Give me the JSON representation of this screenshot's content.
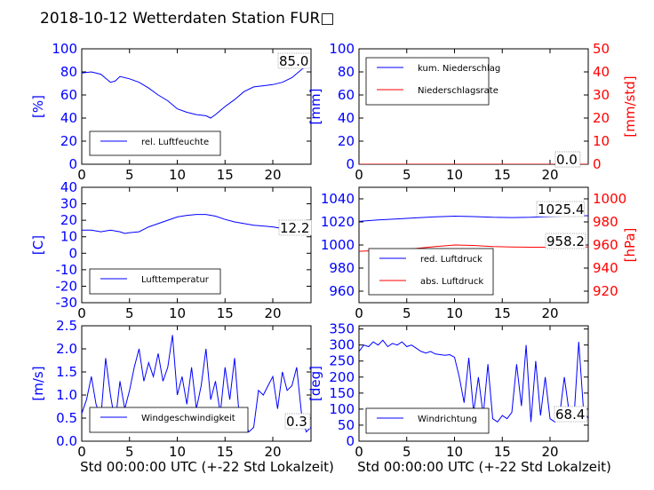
{
  "title": "2018-10-12 Wetterdaten Station FUR□",
  "colors": {
    "primary": "#0000ff",
    "secondary": "#ff0000",
    "frame": "#000000",
    "background": "#ffffff"
  },
  "chart_data": [
    {
      "type": "line",
      "id": "humidity",
      "ylabel": "[%]",
      "xlim": [
        0,
        24
      ],
      "ylim": [
        0,
        100
      ],
      "xticks": [
        0,
        5,
        10,
        15,
        20
      ],
      "yticks": [
        0,
        20,
        40,
        60,
        80,
        100
      ],
      "series": [
        {
          "name": "rel. Luftfeuchte",
          "color": "#0000ff",
          "x": [
            0,
            1,
            2,
            3,
            3.5,
            4,
            5,
            6,
            7,
            8,
            9,
            10,
            11,
            12,
            13,
            13.5,
            14,
            15,
            16,
            17,
            18,
            19,
            20,
            21,
            22,
            23,
            23.5,
            24
          ],
          "y": [
            79,
            80,
            78,
            71,
            72,
            76,
            74,
            71,
            66,
            60,
            55,
            48,
            45,
            43,
            42,
            40,
            43,
            50,
            56,
            63,
            67,
            68,
            69,
            71,
            75,
            82,
            85,
            84
          ]
        }
      ],
      "annotation": "85.0",
      "legend_loc": "lower-left"
    },
    {
      "type": "line",
      "id": "precipitation",
      "ylabel": "[mm]",
      "ylabel2": "[mm/std]",
      "xlim": [
        0,
        24
      ],
      "ylim": [
        0,
        100
      ],
      "ylim2": [
        0,
        50
      ],
      "xticks": [
        0,
        5,
        10,
        15,
        20
      ],
      "yticks": [
        0,
        20,
        40,
        60,
        80,
        100
      ],
      "yticks2": [
        0,
        10,
        20,
        30,
        40,
        50
      ],
      "series": [
        {
          "name": "kum. Niederschlag",
          "color": "#0000ff",
          "x": [
            0,
            24
          ],
          "y": [
            0,
            0
          ]
        },
        {
          "name": "Niederschlagsrate",
          "color": "#ff0000",
          "x": [
            0,
            24
          ],
          "y": [
            0,
            0
          ],
          "axis": "right"
        }
      ],
      "annotation": "0.0",
      "annotation2": "0.0",
      "legend_loc": "upper-left"
    },
    {
      "type": "line",
      "id": "temperature",
      "ylabel": "[C]",
      "xlim": [
        0,
        24
      ],
      "ylim": [
        -30,
        40
      ],
      "xticks": [
        0,
        5,
        10,
        15,
        20
      ],
      "yticks": [
        -30,
        -20,
        -10,
        0,
        10,
        20,
        30,
        40
      ],
      "series": [
        {
          "name": "Lufttemperatur",
          "color": "#0000ff",
          "x": [
            0,
            1,
            2,
            3,
            4,
            4.5,
            5,
            6,
            7,
            8,
            9,
            10,
            11,
            12,
            13,
            14,
            15,
            16,
            17,
            18,
            19,
            20,
            21,
            22,
            23,
            24
          ],
          "y": [
            14,
            14,
            13,
            14,
            13,
            12,
            12.5,
            13,
            16,
            18,
            20,
            22,
            23,
            23.5,
            23.5,
            22.5,
            20.5,
            19,
            18,
            17,
            16.5,
            16,
            15,
            13.5,
            12.5,
            12.2
          ]
        }
      ],
      "annotation": "12.2",
      "legend_loc": "lower-left"
    },
    {
      "type": "line",
      "id": "pressure",
      "ylabel2": "[hPa]",
      "xlim": [
        0,
        24
      ],
      "ylim": [
        950,
        1050
      ],
      "ylim2": [
        910,
        1010
      ],
      "xticks": [
        0,
        5,
        10,
        15,
        20
      ],
      "yticks": [
        960,
        980,
        1000,
        1020,
        1040
      ],
      "yticks2": [
        920,
        940,
        960,
        980,
        1000
      ],
      "series": [
        {
          "name": "red. Luftdruck",
          "color": "#0000ff",
          "x": [
            0,
            2,
            4,
            6,
            8,
            10,
            12,
            14,
            16,
            18,
            20,
            22,
            24
          ],
          "y": [
            1020.5,
            1021.8,
            1022.6,
            1023.5,
            1024.4,
            1025,
            1024.6,
            1024,
            1023.8,
            1024,
            1024.6,
            1025.2,
            1025.4
          ]
        },
        {
          "name": "abs. Luftdruck",
          "color": "#ff0000",
          "axis": "right",
          "x": [
            0,
            2,
            4,
            6,
            8,
            10,
            12,
            14,
            16,
            18,
            20,
            22,
            24
          ],
          "y": [
            954.5,
            955.3,
            956,
            957,
            958.6,
            960,
            959.6,
            958.6,
            958.2,
            958.1,
            958.1,
            958.2,
            958.2
          ]
        }
      ],
      "annotation": "1025.4",
      "annotation2": "958.2",
      "legend_loc": "lower-left"
    },
    {
      "type": "line",
      "id": "wind_speed",
      "ylabel": "[m/s]",
      "xlabel": "Std 00:00:00 UTC (+-22 Std Lokalzeit)",
      "xlim": [
        0,
        24
      ],
      "ylim": [
        0,
        2.5
      ],
      "xticks": [
        0,
        5,
        10,
        15,
        20
      ],
      "yticks": [
        0,
        0.5,
        1.0,
        1.5,
        2.0,
        2.5
      ],
      "series": [
        {
          "name": "Windgeschwindigkeit",
          "color": "#0000ff",
          "x": [
            0,
            0.5,
            1,
            1.5,
            2,
            2.5,
            3,
            3.5,
            4,
            4.5,
            5,
            5.5,
            6,
            6.5,
            7,
            7.5,
            8,
            8.5,
            9,
            9.5,
            10,
            10.5,
            11,
            11.5,
            12,
            12.5,
            13,
            13.5,
            14,
            14.5,
            15,
            15.5,
            16,
            16.5,
            17,
            17.5,
            18,
            18.5,
            19,
            19.5,
            20,
            20.5,
            21,
            21.5,
            22,
            22.5,
            23,
            23.5,
            24
          ],
          "y": [
            0.6,
            0.9,
            1.4,
            0.8,
            0.5,
            1.8,
            1.0,
            0.4,
            1.3,
            0.7,
            1.1,
            1.6,
            2.0,
            1.3,
            1.7,
            1.4,
            1.9,
            1.3,
            1.6,
            2.3,
            1.0,
            1.4,
            0.8,
            1.6,
            0.7,
            1.2,
            2.0,
            0.9,
            1.3,
            0.6,
            1.6,
            0.9,
            1.8,
            0.5,
            0.4,
            0.2,
            0.3,
            1.1,
            1.0,
            1.2,
            1.4,
            0.7,
            1.5,
            1.1,
            1.2,
            1.6,
            0.6,
            0.2,
            0.3
          ]
        }
      ],
      "annotation": "0.3",
      "legend_loc": "lower-left"
    },
    {
      "type": "line",
      "id": "wind_direction",
      "ylabel": "[deg]",
      "xlabel": "Std 00:00:00 UTC (+-22 Std Lokalzeit)",
      "xlim": [
        0,
        24
      ],
      "ylim": [
        0,
        360
      ],
      "xticks": [
        0,
        5,
        10,
        15,
        20
      ],
      "yticks": [
        0,
        50,
        100,
        150,
        200,
        250,
        300,
        350
      ],
      "series": [
        {
          "name": "Windrichtung",
          "color": "#0000ff",
          "x": [
            0,
            0.5,
            1,
            1.5,
            2,
            2.5,
            3,
            3.5,
            4,
            4.5,
            5,
            5.5,
            6,
            6.5,
            7,
            7.5,
            8,
            8.5,
            9,
            9.5,
            10,
            10.5,
            11,
            11.5,
            12,
            12.5,
            13,
            13.5,
            14,
            14.5,
            15,
            15.5,
            16,
            16.5,
            17,
            17.5,
            18,
            18.5,
            19,
            19.5,
            20,
            20.5,
            21,
            21.5,
            22,
            22.5,
            23,
            23.5,
            24
          ],
          "y": [
            280,
            300,
            295,
            310,
            300,
            315,
            295,
            305,
            300,
            310,
            295,
            300,
            290,
            280,
            275,
            280,
            272,
            270,
            268,
            270,
            262,
            200,
            120,
            260,
            90,
            200,
            80,
            240,
            70,
            60,
            80,
            70,
            90,
            240,
            110,
            300,
            60,
            250,
            80,
            200,
            70,
            60,
            80,
            200,
            90,
            70,
            310,
            100,
            70
          ]
        }
      ],
      "annotation": "68.4",
      "legend_loc": "lower-left"
    }
  ]
}
